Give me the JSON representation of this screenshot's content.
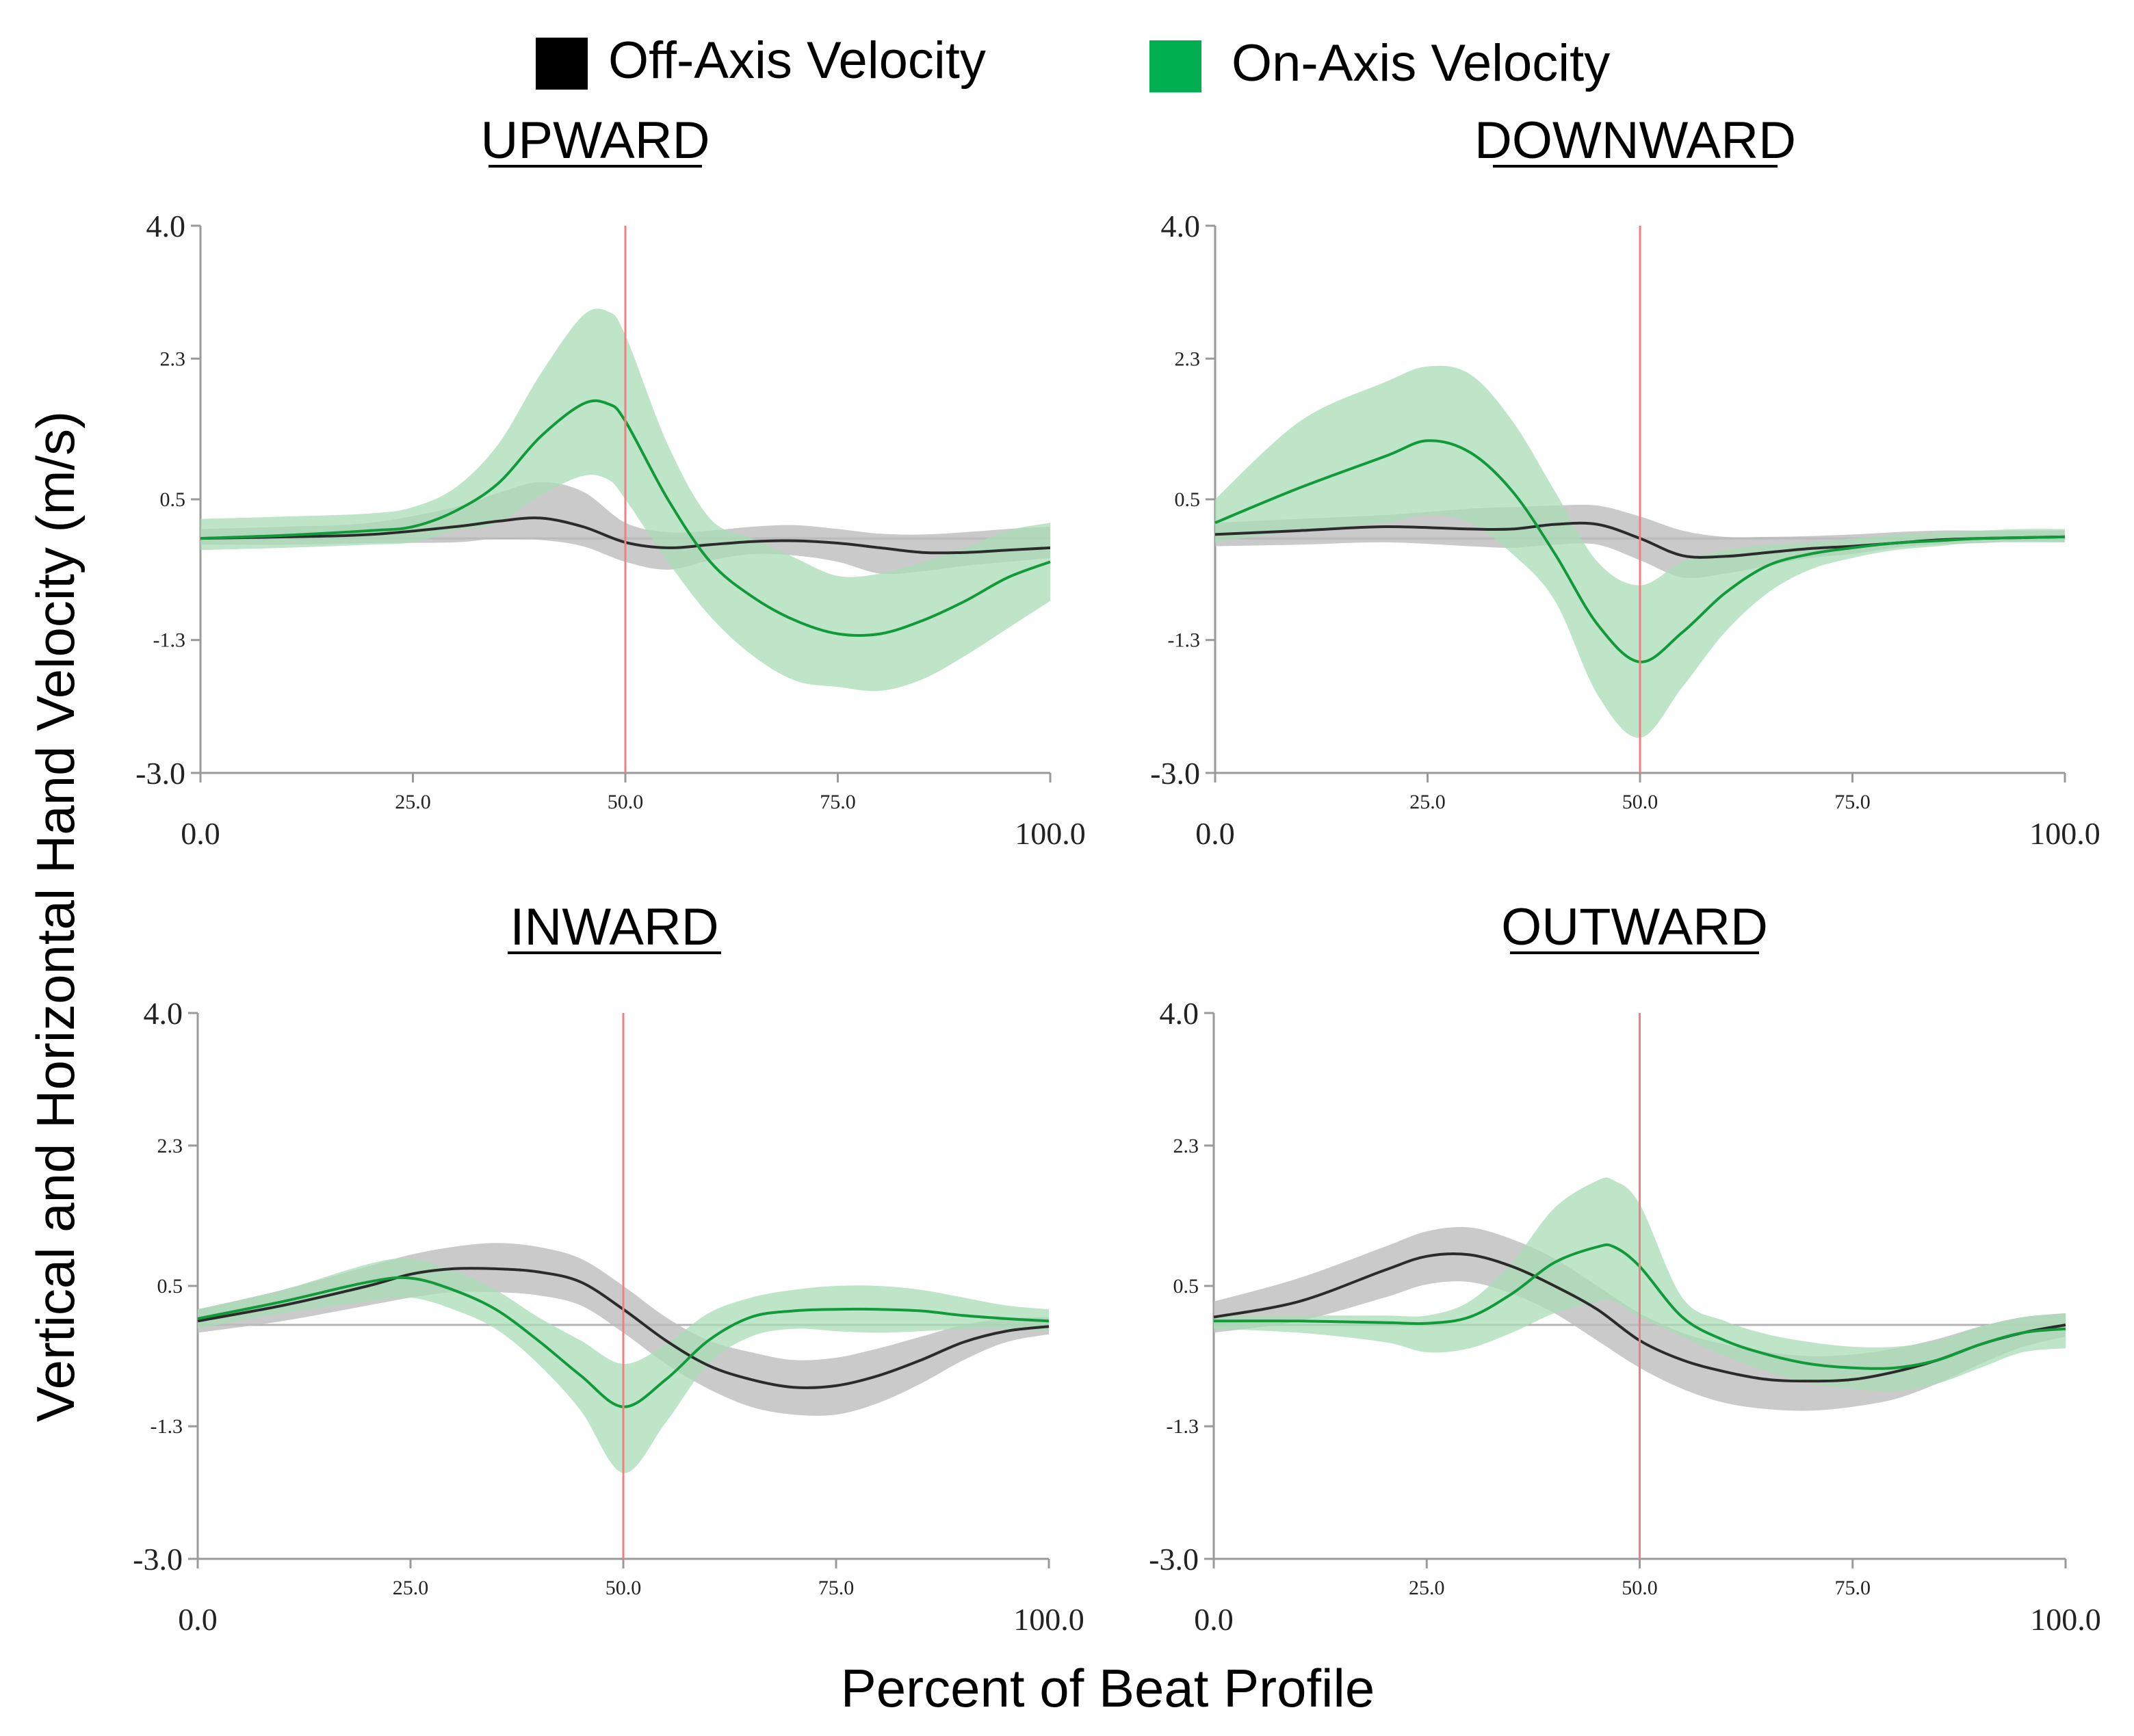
{
  "figure": {
    "y_axis_label": "Vertical and Horizontal Hand Velocity (m/s)",
    "x_axis_label": "Percent of Beat Profile",
    "legend": [
      {
        "label": "Off-Axis Velocity",
        "color": "#000000"
      },
      {
        "label": "On-Axis Velocity",
        "color": "#00b050"
      }
    ]
  },
  "colors": {
    "off_line": "#2b2b2b",
    "off_band": "#bdbdbd",
    "on_line": "#119a3a",
    "on_band": "#a8dcb4",
    "event_line": "#f08080",
    "zero_line": "#b4b4b4",
    "axis": "#9a9a9a"
  },
  "chart_data": [
    {
      "type": "line",
      "title": "UPWARD",
      "xlim": [
        0,
        100
      ],
      "ylim": [
        -3.0,
        4.0
      ],
      "x_ticks": [
        "0.0",
        "25.0",
        "50.0",
        "75.0",
        "100.0"
      ],
      "y_ticks": [
        "4.0",
        "2.3",
        "0.5",
        "-1.3",
        "-3.0"
      ],
      "vline_x": 50,
      "series": [
        {
          "name": "Off-Axis Velocity",
          "x": [
            0,
            10,
            20,
            30,
            35,
            40,
            45,
            50,
            55,
            60,
            65,
            70,
            75,
            80,
            85,
            90,
            95,
            100
          ],
          "y": [
            0,
            0.02,
            0.05,
            0.15,
            0.22,
            0.26,
            0.15,
            -0.05,
            -0.12,
            -0.08,
            -0.04,
            -0.03,
            -0.06,
            -0.12,
            -0.18,
            -0.18,
            -0.15,
            -0.12
          ],
          "band_upper": [
            0.12,
            0.15,
            0.2,
            0.4,
            0.58,
            0.72,
            0.6,
            0.2,
            0.08,
            0.1,
            0.15,
            0.17,
            0.12,
            0.06,
            0.05,
            0.08,
            0.12,
            0.15
          ],
          "band_lower": [
            -0.08,
            -0.08,
            -0.06,
            -0.05,
            0,
            -0.02,
            -0.1,
            -0.3,
            -0.4,
            -0.28,
            -0.2,
            -0.22,
            -0.3,
            -0.45,
            -0.42,
            -0.35,
            -0.3,
            -0.25
          ]
        },
        {
          "name": "On-Axis Velocity",
          "x": [
            0,
            10,
            20,
            25,
            30,
            35,
            40,
            45,
            48,
            50,
            55,
            60,
            65,
            70,
            75,
            80,
            85,
            90,
            95,
            100
          ],
          "y": [
            0,
            0.04,
            0.1,
            0.15,
            0.35,
            0.7,
            1.3,
            1.72,
            1.72,
            1.5,
            0.5,
            -0.3,
            -0.75,
            -1.05,
            -1.22,
            -1.22,
            -1.05,
            -0.8,
            -0.5,
            -0.3
          ],
          "band_upper": [
            0.25,
            0.28,
            0.32,
            0.4,
            0.65,
            1.2,
            2.1,
            2.85,
            2.9,
            2.6,
            1.2,
            0.25,
            0,
            -0.25,
            -0.48,
            -0.45,
            -0.3,
            -0.12,
            0.1,
            0.2
          ],
          "band_lower": [
            -0.15,
            -0.12,
            -0.08,
            -0.05,
            0.1,
            0.2,
            0.55,
            0.8,
            0.75,
            0.5,
            -0.3,
            -1,
            -1.5,
            -1.82,
            -1.9,
            -1.95,
            -1.8,
            -1.5,
            -1.15,
            -0.8
          ]
        }
      ]
    },
    {
      "type": "line",
      "title": "DOWNWARD",
      "xlim": [
        0,
        100
      ],
      "ylim": [
        -3.0,
        4.0
      ],
      "x_ticks": [
        "0.0",
        "25.0",
        "50.0",
        "75.0",
        "100.0"
      ],
      "y_ticks": [
        "4.0",
        "2.3",
        "0.5",
        "-1.3",
        "-3.0"
      ],
      "vline_x": 50,
      "series": [
        {
          "name": "Off-Axis Velocity",
          "x": [
            0,
            10,
            20,
            30,
            35,
            40,
            45,
            50,
            55,
            60,
            65,
            70,
            75,
            80,
            85,
            90,
            95,
            100
          ],
          "y": [
            0.05,
            0.1,
            0.15,
            0.12,
            0.12,
            0.18,
            0.18,
            0,
            -0.22,
            -0.23,
            -0.18,
            -0.13,
            -0.1,
            -0.06,
            -0.02,
            0,
            0.01,
            0.02
          ],
          "band_upper": [
            0.2,
            0.25,
            0.3,
            0.38,
            0.4,
            0.42,
            0.42,
            0.28,
            0.1,
            0.02,
            0.02,
            0.03,
            0.05,
            0.08,
            0.1,
            0.1,
            0.1,
            0.1
          ],
          "band_lower": [
            -0.1,
            -0.08,
            -0.05,
            -0.1,
            -0.12,
            -0.08,
            -0.08,
            -0.28,
            -0.5,
            -0.45,
            -0.35,
            -0.25,
            -0.2,
            -0.12,
            -0.08,
            -0.06,
            -0.04,
            -0.05
          ]
        },
        {
          "name": "On-Axis Velocity",
          "x": [
            0,
            10,
            20,
            25,
            30,
            35,
            40,
            45,
            50,
            55,
            60,
            65,
            70,
            75,
            80,
            85,
            90,
            95,
            100
          ],
          "y": [
            0.2,
            0.65,
            1.05,
            1.25,
            1.1,
            0.6,
            -0.2,
            -1.1,
            -1.58,
            -1.2,
            -0.7,
            -0.35,
            -0.2,
            -0.12,
            -0.06,
            -0.03,
            0,
            0.01,
            0.02
          ],
          "band_upper": [
            0.5,
            1.5,
            2.0,
            2.2,
            2.1,
            1.5,
            0.6,
            -0.3,
            -0.6,
            -0.3,
            -0.15,
            -0.08,
            -0.05,
            0,
            0.05,
            0.08,
            0.1,
            0.12,
            0.12
          ],
          "band_lower": [
            -0.05,
            0.1,
            0.2,
            0.3,
            0.2,
            -0.2,
            -0.8,
            -2.0,
            -2.55,
            -1.9,
            -1.2,
            -0.7,
            -0.4,
            -0.25,
            -0.15,
            -0.1,
            -0.05,
            -0.05,
            -0.05
          ]
        }
      ]
    },
    {
      "type": "line",
      "title": "INWARD",
      "xlim": [
        0,
        100
      ],
      "ylim": [
        -3.0,
        4.0
      ],
      "x_ticks": [
        "0.0",
        "25.0",
        "50.0",
        "75.0",
        "100.0"
      ],
      "y_ticks": [
        "4.0",
        "2.3",
        "0.5",
        "-1.3",
        "-3.0"
      ],
      "vline_x": 50,
      "series": [
        {
          "name": "Off-Axis Velocity",
          "x": [
            0,
            10,
            20,
            25,
            30,
            35,
            40,
            45,
            50,
            55,
            60,
            65,
            70,
            75,
            80,
            85,
            90,
            95,
            100
          ],
          "y": [
            0.05,
            0.25,
            0.5,
            0.65,
            0.72,
            0.72,
            0.68,
            0.55,
            0.2,
            -0.2,
            -0.52,
            -0.7,
            -0.8,
            -0.78,
            -0.65,
            -0.45,
            -0.22,
            -0.08,
            -0.02
          ],
          "band_upper": [
            0.2,
            0.45,
            0.75,
            0.9,
            1.0,
            1.05,
            1.0,
            0.85,
            0.5,
            0.1,
            -0.2,
            -0.35,
            -0.45,
            -0.42,
            -0.3,
            -0.15,
            0,
            0.08,
            0.1
          ],
          "band_lower": [
            -0.1,
            0.05,
            0.25,
            0.35,
            0.42,
            0.42,
            0.38,
            0.25,
            -0.1,
            -0.5,
            -0.82,
            -1.05,
            -1.15,
            -1.15,
            -1.0,
            -0.75,
            -0.45,
            -0.22,
            -0.12
          ]
        },
        {
          "name": "On-Axis Velocity",
          "x": [
            0,
            10,
            20,
            25,
            30,
            35,
            40,
            45,
            50,
            55,
            60,
            65,
            70,
            75,
            80,
            85,
            90,
            95,
            100
          ],
          "y": [
            0.08,
            0.3,
            0.55,
            0.6,
            0.45,
            0.2,
            -0.2,
            -0.65,
            -1.05,
            -0.7,
            -0.2,
            0.1,
            0.18,
            0.2,
            0.2,
            0.18,
            0.12,
            0.08,
            0.05
          ],
          "band_upper": [
            0.2,
            0.45,
            0.78,
            0.85,
            0.7,
            0.45,
            0.1,
            -0.2,
            -0.5,
            -0.25,
            0.15,
            0.35,
            0.45,
            0.5,
            0.5,
            0.45,
            0.35,
            0.25,
            0.2
          ],
          "band_lower": [
            -0.05,
            0.15,
            0.3,
            0.35,
            0.2,
            -0.05,
            -0.5,
            -1.1,
            -1.9,
            -1.25,
            -0.5,
            -0.15,
            -0.05,
            -0.08,
            -0.1,
            -0.08,
            -0.05,
            -0.05,
            -0.08
          ]
        }
      ]
    },
    {
      "type": "line",
      "title": "OUTWARD",
      "xlim": [
        0,
        100
      ],
      "ylim": [
        -3.0,
        4.0
      ],
      "x_ticks": [
        "0.0",
        "25.0",
        "50.0",
        "75.0",
        "100.0"
      ],
      "y_ticks": [
        "4.0",
        "2.3",
        "0.5",
        "-1.3",
        "-3.0"
      ],
      "vline_x": 50,
      "series": [
        {
          "name": "Off-Axis Velocity",
          "x": [
            0,
            10,
            20,
            25,
            30,
            35,
            40,
            45,
            50,
            55,
            60,
            65,
            70,
            75,
            80,
            85,
            90,
            95,
            100
          ],
          "y": [
            0.1,
            0.3,
            0.7,
            0.88,
            0.9,
            0.75,
            0.5,
            0.2,
            -0.2,
            -0.45,
            -0.6,
            -0.7,
            -0.72,
            -0.7,
            -0.6,
            -0.45,
            -0.25,
            -0.1,
            0
          ],
          "band_upper": [
            0.3,
            0.6,
            1.0,
            1.2,
            1.25,
            1.1,
            0.85,
            0.5,
            0.15,
            -0.1,
            -0.25,
            -0.35,
            -0.4,
            -0.38,
            -0.3,
            -0.18,
            -0.02,
            0.1,
            0.15
          ],
          "band_lower": [
            -0.1,
            0.05,
            0.35,
            0.52,
            0.55,
            0.4,
            0.15,
            -0.2,
            -0.55,
            -0.82,
            -1.0,
            -1.08,
            -1.1,
            -1.05,
            -0.95,
            -0.75,
            -0.5,
            -0.28,
            -0.15
          ]
        },
        {
          "name": "On-Axis Velocity",
          "x": [
            0,
            10,
            20,
            25,
            30,
            35,
            40,
            45,
            47,
            50,
            55,
            60,
            65,
            70,
            75,
            80,
            85,
            90,
            95,
            100
          ],
          "y": [
            0.05,
            0.05,
            0.03,
            0.02,
            0.1,
            0.4,
            0.8,
            1.0,
            1.0,
            0.75,
            0.1,
            -0.2,
            -0.38,
            -0.5,
            -0.55,
            -0.55,
            -0.45,
            -0.25,
            -0.1,
            -0.05
          ],
          "band_upper": [
            0.12,
            0.12,
            0.12,
            0.12,
            0.3,
            0.8,
            1.5,
            1.85,
            1.85,
            1.55,
            0.35,
            0.05,
            -0.12,
            -0.22,
            -0.28,
            -0.28,
            -0.2,
            -0.02,
            0.1,
            0.15
          ],
          "band_lower": [
            -0.05,
            -0.1,
            -0.22,
            -0.35,
            -0.3,
            -0.1,
            0.15,
            0.3,
            0.3,
            0.1,
            -0.15,
            -0.4,
            -0.6,
            -0.75,
            -0.82,
            -0.85,
            -0.75,
            -0.55,
            -0.35,
            -0.3
          ]
        }
      ]
    }
  ]
}
